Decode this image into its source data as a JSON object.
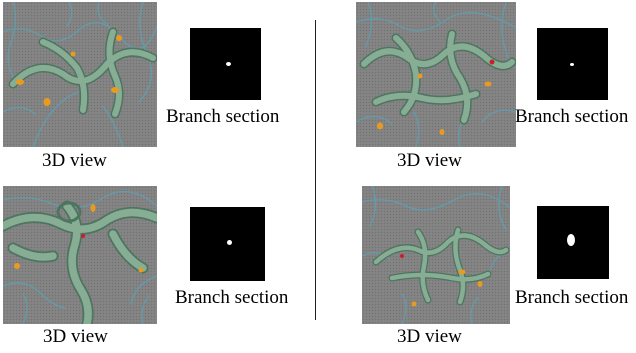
{
  "panels": [
    {
      "view_label": "3D view",
      "section_label": "Branch section"
    },
    {
      "view_label": "3D view",
      "section_label": "Branch section"
    },
    {
      "view_label": "3D view",
      "section_label": "Branch section"
    },
    {
      "view_label": "3D view",
      "section_label": "Branch section"
    }
  ],
  "colors": {
    "background": "#858585",
    "vessel": "#7fa58c",
    "vessel_thin": "#5f9fb1",
    "highlight": "#e89b1f",
    "mark_red": "#c8202a",
    "section_bg": "#000000",
    "section_blob": "#ffffff"
  }
}
